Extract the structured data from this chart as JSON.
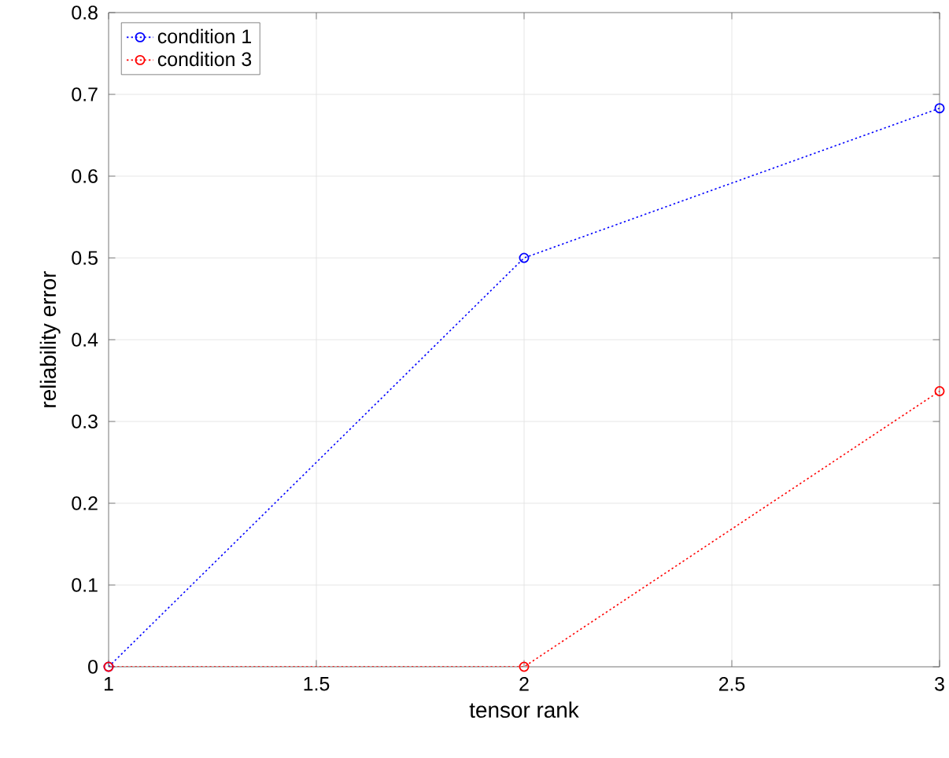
{
  "chart_data": {
    "type": "line",
    "xlabel": "tensor rank",
    "ylabel": "reliability error",
    "x": [
      1,
      2,
      3
    ],
    "series": [
      {
        "name": "condition 1",
        "color": "#0000ff",
        "values": [
          0,
          0.5,
          0.683
        ]
      },
      {
        "name": "condition 3",
        "color": "#ff0000",
        "values": [
          0,
          0,
          0.337
        ]
      }
    ],
    "xlim": [
      1,
      3
    ],
    "ylim": [
      0,
      0.8
    ],
    "xticks": [
      1,
      1.5,
      2,
      2.5,
      3
    ],
    "yticks": [
      0,
      0.1,
      0.2,
      0.3,
      0.4,
      0.5,
      0.6,
      0.7,
      0.8
    ],
    "grid": true,
    "legend": "top left",
    "marker": "circle",
    "line_style": "dotted"
  }
}
